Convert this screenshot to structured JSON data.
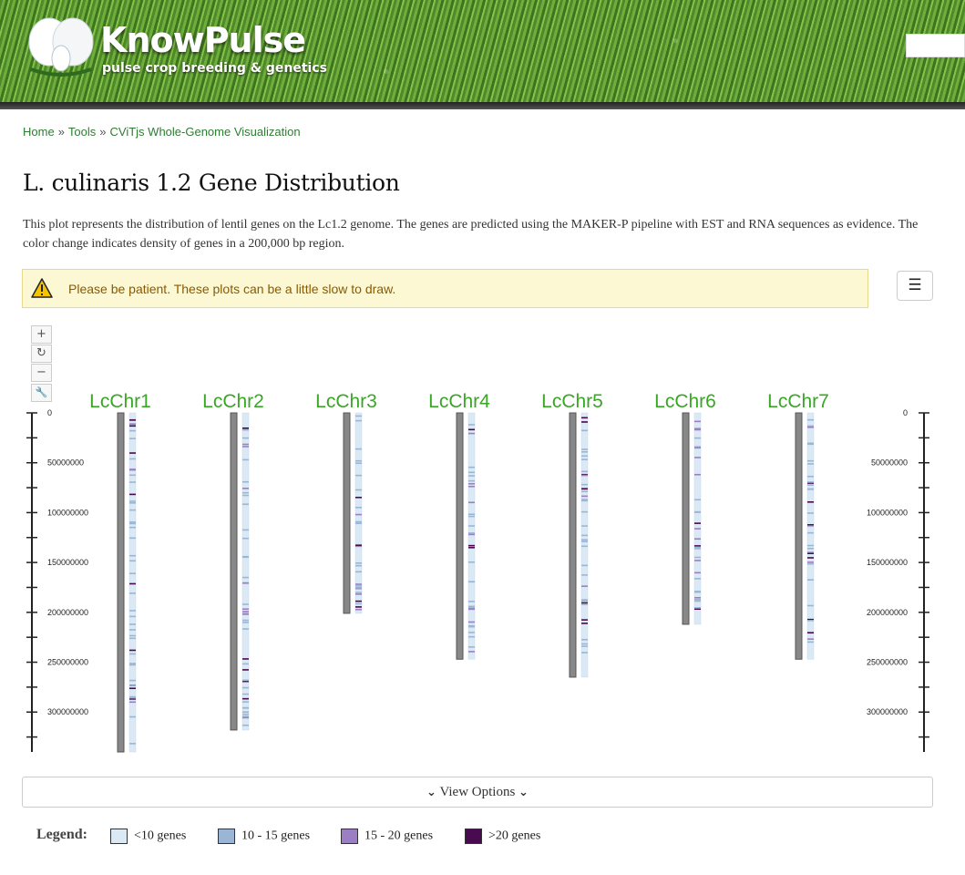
{
  "header": {
    "logo_title": "KnowPulse",
    "logo_subtitle": "pulse crop breeding & genetics"
  },
  "breadcrumb": {
    "items": [
      "Home",
      "Tools",
      "CViTjs Whole-Genome Visualization"
    ],
    "separator": "»"
  },
  "page": {
    "title": "L. culinaris 1.2 Gene Distribution",
    "description": "This plot represents the distribution of lentil genes on the Lc1.2 genome. The genes are predicted using the MAKER-P pipeline with EST and RNA sequences as evidence. The color change indicates density of genes in a 200,000 bp region."
  },
  "alert": {
    "text": "Please be patient. These plots can be a little slow to draw.",
    "icon": "warning-icon"
  },
  "menu_button": {
    "icon": "hamburger-icon",
    "label": "☰"
  },
  "toolbar": {
    "zoom_in": "+",
    "reset": "↻",
    "zoom_out": "−",
    "settings": "🔧"
  },
  "chart_data": {
    "type": "chromosome-ideogram",
    "axis_ticks": [
      "0",
      "50000000",
      "100000000",
      "150000000",
      "200000000",
      "250000000",
      "300000000"
    ],
    "axis_max": 340000000,
    "axis_tick_step": 50000000,
    "axis_minor_step": 25000000,
    "chromosomes": [
      {
        "name": "LcChr1",
        "length": 340000000
      },
      {
        "name": "LcChr2",
        "length": 318000000
      },
      {
        "name": "LcChr3",
        "length": 201000000
      },
      {
        "name": "LcChr4",
        "length": 247000000
      },
      {
        "name": "LcChr5",
        "length": 265000000
      },
      {
        "name": "LcChr6",
        "length": 212000000
      },
      {
        "name": "LcChr7",
        "length": 247000000
      }
    ],
    "density_colors": {
      "low": "#dbe9f4",
      "medium": "#9bb6d4",
      "high": "#9a7fc4",
      "very_high": "#4a0a4f"
    },
    "chromosome_color": "#888888",
    "label_color": "#3aa626"
  },
  "view_options": {
    "label": "View Options"
  },
  "legend": {
    "title": "Legend:",
    "items": [
      {
        "label": "<10 genes",
        "color": "#dbe9f4"
      },
      {
        "label": "10 - 15 genes",
        "color": "#9bb6d4"
      },
      {
        "label": "15 - 20 genes",
        "color": "#9a7fc4"
      },
      {
        "label": ">20 genes",
        "color": "#4a0a4f"
      }
    ]
  }
}
